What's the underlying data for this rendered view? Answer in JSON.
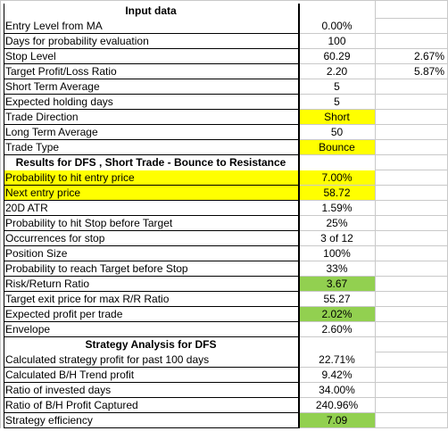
{
  "sections": [
    {
      "header": "Input data",
      "rows": [
        {
          "label": "Entry Level from MA",
          "value": "0.00%"
        },
        {
          "label": "Days for probability evaluation",
          "value": "100"
        },
        {
          "label": "Stop Level",
          "value": "60.29",
          "extra": "2.67%"
        },
        {
          "label": "Target Profit/Loss Ratio",
          "value": "2.20",
          "extra": "5.87%"
        },
        {
          "label": "Short Term Average",
          "value": "5"
        },
        {
          "label": "Expected holding days",
          "value": "5"
        },
        {
          "label": "Trade Direction",
          "value": "Short",
          "value_fill": "yellow"
        },
        {
          "label": "Long Term Average",
          "value": "50"
        },
        {
          "label": "Trade Type",
          "value": "Bounce",
          "value_fill": "yellow"
        }
      ]
    },
    {
      "header": "Results for DFS , Short Trade - Bounce to Resistance",
      "rows": [
        {
          "label": "Probability to hit entry price",
          "value": "7.00%",
          "label_fill": "yellow",
          "value_fill": "yellow"
        },
        {
          "label": "Next entry price",
          "value": "58.72",
          "label_fill": "yellow",
          "value_fill": "yellow"
        },
        {
          "label": "20D ATR",
          "value": "1.59%"
        },
        {
          "label": "Probability to hit Stop before Target",
          "value": "25%"
        },
        {
          "label": "Occurrences for stop",
          "value": "3 of 12"
        },
        {
          "label": "Position Size",
          "value": "100%"
        },
        {
          "label": "Probability to reach Target before Stop",
          "value": "33%"
        },
        {
          "label": "Risk/Return Ratio",
          "value": "3.67",
          "value_fill": "green"
        },
        {
          "label": "Target exit price for max R/R Ratio",
          "value": "55.27"
        },
        {
          "label": "Expected profit per trade",
          "value": "2.02%",
          "value_fill": "green"
        },
        {
          "label": "Envelope",
          "value": "2.60%"
        }
      ]
    },
    {
      "header": "Strategy Analysis for DFS",
      "rows": [
        {
          "label": "Calculated strategy profit for past 100 days",
          "value": "22.71%"
        },
        {
          "label": "Calculated B/H Trend profit",
          "value": "9.42%"
        },
        {
          "label": "Ratio of invested days",
          "value": "34.00%"
        },
        {
          "label": "Ratio of B/H Profit Captured",
          "value": "240.96%"
        },
        {
          "label": "Strategy efficiency",
          "value": "7.09",
          "value_fill": "green"
        }
      ]
    }
  ],
  "colors": {
    "yellow": "#ffff00",
    "green": "#92d050",
    "border": "#000000",
    "gridline": "#c9c9c9"
  }
}
